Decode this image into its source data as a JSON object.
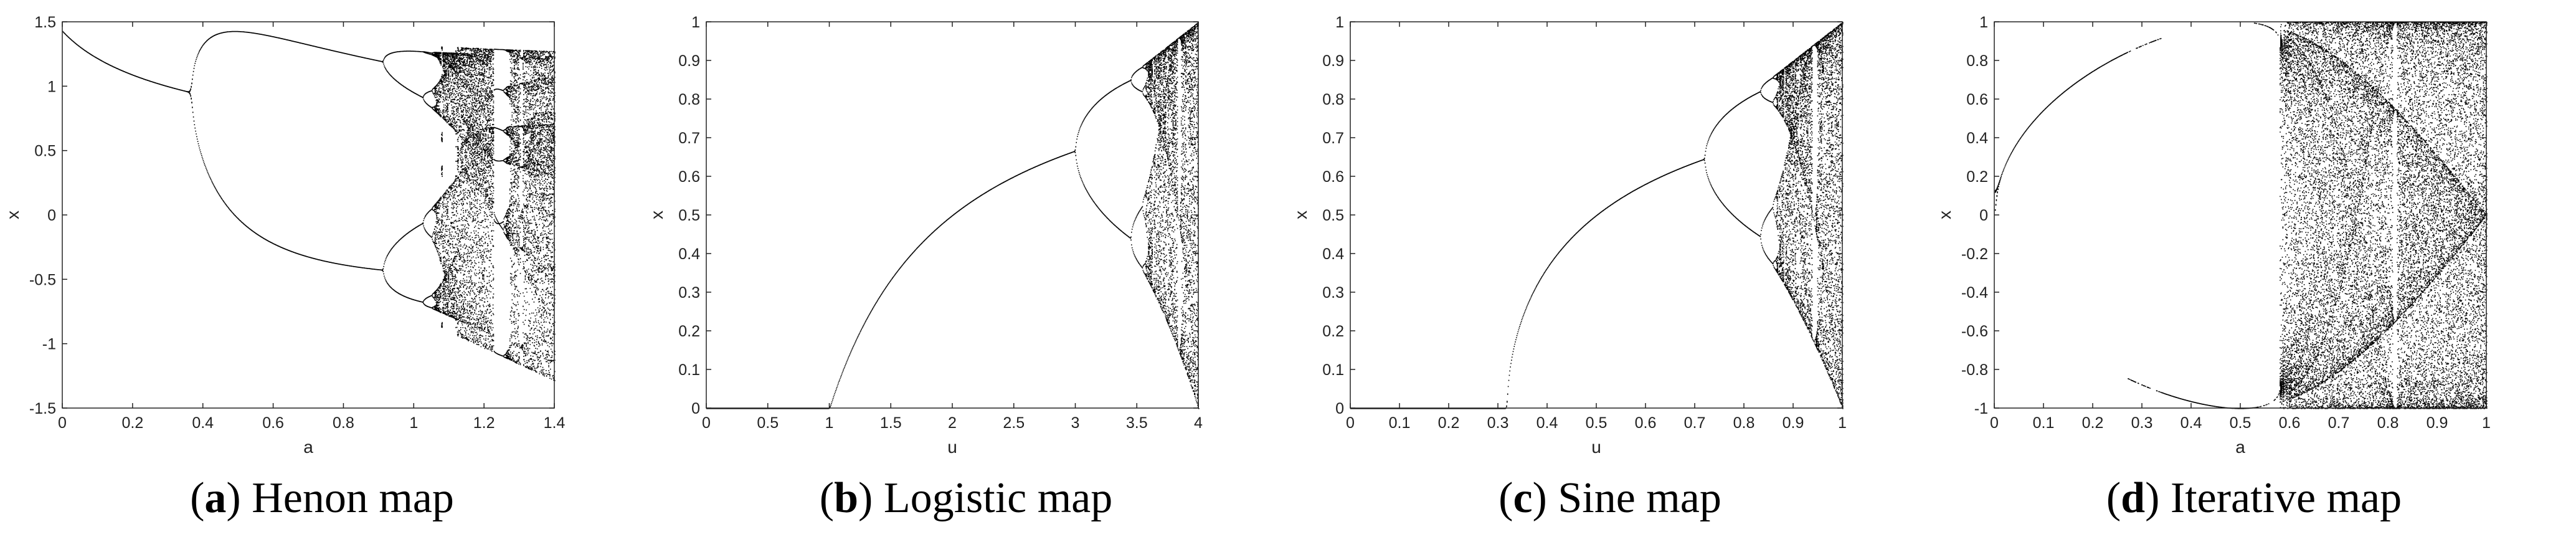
{
  "chart_data": [
    {
      "type": "scatter",
      "panel_id": "a",
      "caption_label": "a",
      "caption_text": "Henon map",
      "xlabel": "a",
      "ylabel": "x",
      "xlim": [
        0,
        1.4
      ],
      "ylim": [
        -1.5,
        1.5
      ],
      "xticks": [
        0,
        0.2,
        0.4,
        0.6,
        0.8,
        1,
        1.2,
        1.4
      ],
      "yticks": [
        -1.5,
        -1,
        -0.5,
        0,
        0.5,
        1,
        1.5
      ],
      "xtick_labels": [
        "0",
        "0.2",
        "0.4",
        "0.6",
        "0.8",
        "1",
        "1.2",
        "1.4"
      ],
      "ytick_labels": [
        "-1.5",
        "-1",
        "-0.5",
        "0",
        "0.5",
        "1",
        "1.5"
      ],
      "map": "henon",
      "grid": false,
      "marker_color": "#000000"
    },
    {
      "type": "scatter",
      "panel_id": "b",
      "caption_label": "b",
      "caption_text": "Logistic map",
      "xlabel": "u",
      "ylabel": "x",
      "xlim": [
        0,
        4
      ],
      "ylim": [
        0,
        1
      ],
      "xticks": [
        0,
        0.5,
        1,
        1.5,
        2,
        2.5,
        3,
        3.5,
        4
      ],
      "yticks": [
        0,
        0.1,
        0.2,
        0.3,
        0.4,
        0.5,
        0.6,
        0.7,
        0.8,
        0.9,
        1
      ],
      "xtick_labels": [
        "0",
        "0.5",
        "1",
        "1.5",
        "2",
        "2.5",
        "3",
        "3.5",
        "4"
      ],
      "ytick_labels": [
        "0",
        "0.1",
        "0.2",
        "0.3",
        "0.4",
        "0.5",
        "0.6",
        "0.7",
        "0.8",
        "0.9",
        "1"
      ],
      "map": "logistic",
      "grid": false,
      "marker_color": "#000000"
    },
    {
      "type": "scatter",
      "panel_id": "c",
      "caption_label": "c",
      "caption_text": "Sine map",
      "xlabel": "u",
      "ylabel": "x",
      "xlim": [
        0,
        1
      ],
      "ylim": [
        0,
        1
      ],
      "xticks": [
        0,
        0.1,
        0.2,
        0.3,
        0.4,
        0.5,
        0.6,
        0.7,
        0.8,
        0.9,
        1
      ],
      "yticks": [
        0,
        0.1,
        0.2,
        0.3,
        0.4,
        0.5,
        0.6,
        0.7,
        0.8,
        0.9,
        1
      ],
      "xtick_labels": [
        "0",
        "0.1",
        "0.2",
        "0.3",
        "0.4",
        "0.5",
        "0.6",
        "0.7",
        "0.8",
        "0.9",
        "1"
      ],
      "ytick_labels": [
        "0",
        "0.1",
        "0.2",
        "0.3",
        "0.4",
        "0.5",
        "0.6",
        "0.7",
        "0.8",
        "0.9",
        "1"
      ],
      "map": "sine",
      "grid": false,
      "marker_color": "#000000"
    },
    {
      "type": "scatter",
      "panel_id": "d",
      "caption_label": "d",
      "caption_text": "Iterative map",
      "xlabel": "a",
      "ylabel": "x",
      "xlim": [
        0,
        1
      ],
      "ylim": [
        -1,
        1
      ],
      "xticks": [
        0,
        0.1,
        0.2,
        0.3,
        0.4,
        0.5,
        0.6,
        0.7,
        0.8,
        0.9,
        1
      ],
      "yticks": [
        -1,
        -0.8,
        -0.6,
        -0.4,
        -0.2,
        0,
        0.2,
        0.4,
        0.6,
        0.8,
        1
      ],
      "xtick_labels": [
        "0",
        "0.1",
        "0.2",
        "0.3",
        "0.4",
        "0.5",
        "0.6",
        "0.7",
        "0.8",
        "0.9",
        "1"
      ],
      "ytick_labels": [
        "-1",
        "-0.8",
        "-0.6",
        "-0.4",
        "-0.2",
        "0",
        "0.2",
        "0.4",
        "0.6",
        "0.8",
        "1"
      ],
      "map": "iterative",
      "grid": false,
      "marker_color": "#000000"
    }
  ]
}
